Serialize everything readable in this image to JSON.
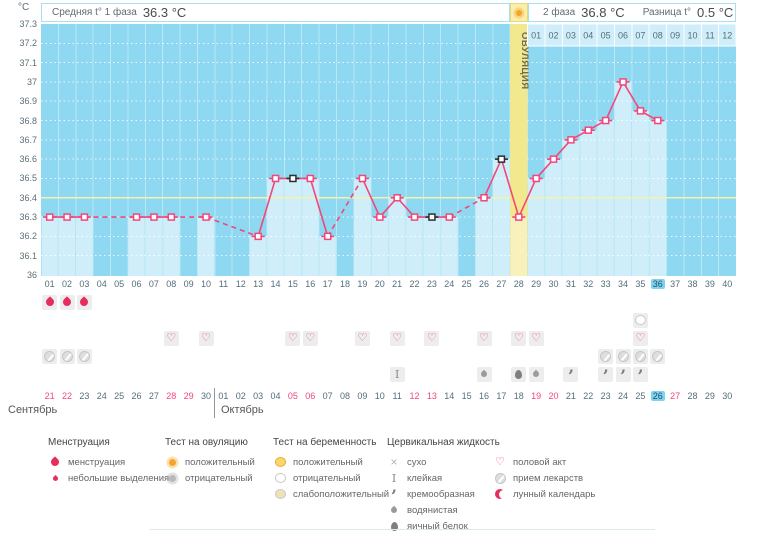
{
  "unit": "°C",
  "header": {
    "phase1_label": "Средняя t° 1 фаза",
    "phase1_value": "36.3 °C",
    "phase2_label": "2 фаза",
    "phase2_value": "36.8 °C",
    "diff_label": "Разница t°",
    "diff_value": "0.5 °C"
  },
  "chart_data": {
    "type": "line",
    "ylabel": "°C",
    "ylim": [
      36.0,
      37.3
    ],
    "ytick_step": 0.1,
    "y_tick_labels": [
      "36",
      "36.1",
      "36.2",
      "36.3",
      "36.4",
      "36.5",
      "36.6",
      "36.7",
      "36.8",
      "36.9",
      "37",
      "37.1",
      "37.2",
      "37.3"
    ],
    "x_days": [
      1,
      2,
      3,
      4,
      5,
      6,
      7,
      8,
      9,
      10,
      11,
      12,
      13,
      14,
      15,
      16,
      17,
      18,
      19,
      20,
      21,
      22,
      23,
      24,
      25,
      26,
      27,
      28,
      29,
      30,
      31,
      32,
      33,
      34,
      35,
      36,
      37,
      38,
      39,
      40
    ],
    "values": [
      36.3,
      36.3,
      36.3,
      null,
      null,
      36.3,
      36.3,
      36.3,
      null,
      36.3,
      null,
      null,
      36.2,
      36.5,
      36.5,
      36.5,
      36.2,
      null,
      36.5,
      36.3,
      36.4,
      36.3,
      36.3,
      36.3,
      null,
      36.4,
      36.6,
      36.3,
      36.5,
      36.6,
      36.7,
      36.75,
      36.8,
      37.0,
      36.85,
      36.8,
      null,
      null,
      null,
      null
    ],
    "black_marker_days": [
      15,
      23,
      27
    ],
    "coverline": 36.4,
    "ovulation_day": 28,
    "ovulation_label": "ОВУЛЯЦИЯ",
    "current_day": 36,
    "phase2_day_numbers": [
      "01",
      "02",
      "03",
      "04",
      "05",
      "06",
      "07",
      "08",
      "09",
      "10",
      "11",
      "12"
    ],
    "grid": true,
    "legend_position": "bottom"
  },
  "events": {
    "menstruation_days": [
      1,
      2,
      3
    ],
    "pregnancy_test_negative_days": [
      35
    ],
    "intercourse_days": [
      8,
      10,
      15,
      16,
      19,
      21,
      23,
      26,
      28,
      29,
      35
    ],
    "medication_days": [
      1,
      2,
      3,
      33,
      34,
      35,
      36
    ],
    "cervical_fluid": [
      {
        "day": 21,
        "type": "клейкая"
      },
      {
        "day": 26,
        "type": "водянистая"
      },
      {
        "day": 28,
        "type": "яичный белок"
      },
      {
        "day": 29,
        "type": "водянистая"
      },
      {
        "day": 31,
        "type": "кремообразная"
      },
      {
        "day": 33,
        "type": "кремообразная"
      },
      {
        "day": 34,
        "type": "кремообразная"
      },
      {
        "day": 35,
        "type": "кремообразная"
      }
    ]
  },
  "calendar": {
    "months": [
      {
        "name": "Сентябрь",
        "dates": [
          21,
          22,
          23,
          24,
          25,
          26,
          27,
          28,
          29,
          30
        ],
        "weekend_dates": [
          21,
          22,
          28,
          29
        ]
      },
      {
        "name": "Октябрь",
        "dates": [
          1,
          2,
          3,
          4,
          5,
          6,
          7,
          8,
          9,
          10,
          11,
          12,
          13,
          14,
          15,
          16,
          17,
          18,
          19,
          20,
          21,
          22,
          23,
          24,
          25,
          26,
          27,
          28,
          29,
          30
        ],
        "weekend_dates": [
          5,
          6,
          12,
          13,
          19,
          20,
          27
        ],
        "today": 26
      }
    ]
  },
  "legend": {
    "groups": [
      {
        "title": "Менструация",
        "items": [
          {
            "icon": "drop",
            "label": "менструация"
          },
          {
            "icon": "drop-small",
            "label": "небольшие выделения"
          }
        ]
      },
      {
        "title": "Тест на овуляцию",
        "items": [
          {
            "icon": "sun-pos",
            "label": "положительный"
          },
          {
            "icon": "sun-neg",
            "label": "отрицательный"
          }
        ]
      },
      {
        "title": "Тест на беременность",
        "items": [
          {
            "icon": "bubble-pos",
            "label": "положительный"
          },
          {
            "icon": "bubble-neg",
            "label": "отрицательный"
          },
          {
            "icon": "bubble-weak",
            "label": "слабоположительный"
          }
        ]
      },
      {
        "title": "Цервикальная жидкость",
        "items": [
          {
            "icon": "x",
            "label": "сухо"
          },
          {
            "icon": "sticky",
            "label": "клейкая"
          },
          {
            "icon": "creamy",
            "label": "кремообразная"
          },
          {
            "icon": "watery",
            "label": "водянистая"
          },
          {
            "icon": "eggwhite",
            "label": "яичный белок"
          }
        ]
      },
      {
        "title": "",
        "items": [
          {
            "icon": "heart",
            "label": "половой акт"
          },
          {
            "icon": "pill",
            "label": "прием лекарств"
          },
          {
            "icon": "crescent",
            "label": "лунный календарь"
          }
        ]
      }
    ]
  },
  "colors": {
    "plot_bg": "#8ed8f2",
    "column_fill": "#cfeefa",
    "ovulation_band": "#f2e88d",
    "ovulation_band_light": "#f8f1bc",
    "coverline": "#f7f2a9",
    "temp_line": "#f2477a",
    "black_marker": "#2e2e2e",
    "highlight_day": "#7cd3f2",
    "weekend_date": "#f2477a",
    "menstruation": "#e62e5c"
  }
}
